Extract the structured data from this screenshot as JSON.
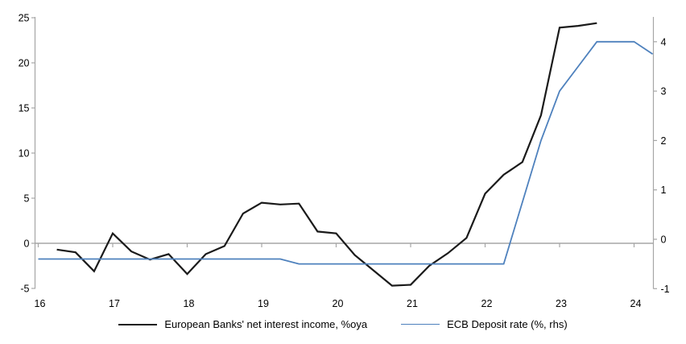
{
  "chart_data": {
    "type": "line",
    "title": "",
    "grid": "zero-line-only",
    "legend_position": "bottom-center",
    "x_axis": {
      "unit": "year",
      "tick_labels": [
        "16",
        "17",
        "18",
        "19",
        "20",
        "21",
        "22",
        "23",
        "24"
      ]
    },
    "left_axis": {
      "ticks": [
        -5,
        0,
        5,
        10,
        15,
        20,
        25
      ],
      "tick_labels": [
        "-5",
        "0",
        "5",
        "10",
        "15",
        "20",
        "25"
      ],
      "range": [
        -5,
        25
      ],
      "measures": "European Banks' net interest income, %oya"
    },
    "right_axis": {
      "ticks": [
        -1,
        0,
        1,
        2,
        3,
        4
      ],
      "tick_labels": [
        "-1",
        "0",
        "1",
        "2",
        "3",
        "4"
      ],
      "range": [
        -1,
        4.5
      ],
      "measures": "ECB Deposit rate (%, rhs)"
    },
    "series": [
      {
        "name": "European Banks' net interest income, %oya",
        "axis": "left",
        "color": "#1a1a1a",
        "frequency": "quarterly",
        "start_quarter": "2016Q2",
        "values": [
          -0.7,
          -1.0,
          -3.1,
          1.1,
          -0.9,
          -1.8,
          -1.2,
          -3.4,
          -1.2,
          -0.3,
          3.3,
          4.5,
          4.3,
          4.4,
          1.3,
          1.1,
          -1.3,
          -3.0,
          -4.7,
          -4.6,
          -2.5,
          -1.1,
          0.6,
          5.5,
          7.6,
          9.0,
          14.2,
          23.9,
          24.1,
          24.4
        ]
      },
      {
        "name": "ECB Deposit rate (%, rhs)",
        "axis": "right",
        "color": "#4e81bd",
        "frequency": "quarterly",
        "start_quarter": "2016Q1",
        "values": [
          -0.4,
          -0.4,
          -0.4,
          -0.4,
          -0.4,
          -0.4,
          -0.4,
          -0.4,
          -0.4,
          -0.4,
          -0.4,
          -0.4,
          -0.4,
          -0.4,
          -0.5,
          -0.5,
          -0.5,
          -0.5,
          -0.5,
          -0.5,
          -0.5,
          -0.5,
          -0.5,
          -0.5,
          -0.5,
          -0.5,
          0.75,
          2.0,
          3.0,
          3.5,
          4.0,
          4.0,
          4.0,
          3.75
        ]
      }
    ]
  },
  "legend": {
    "items": [
      {
        "label": "European Banks' net interest income, %oya",
        "color": "#1a1a1a"
      },
      {
        "label": "ECB Deposit rate (%, rhs)",
        "color": "#4e81bd"
      }
    ]
  },
  "colors": {
    "background": "#ffffff",
    "axis": "#a6a6a6",
    "nii_line": "#1a1a1a",
    "deposit_line": "#4e81bd",
    "text": "#000000"
  }
}
